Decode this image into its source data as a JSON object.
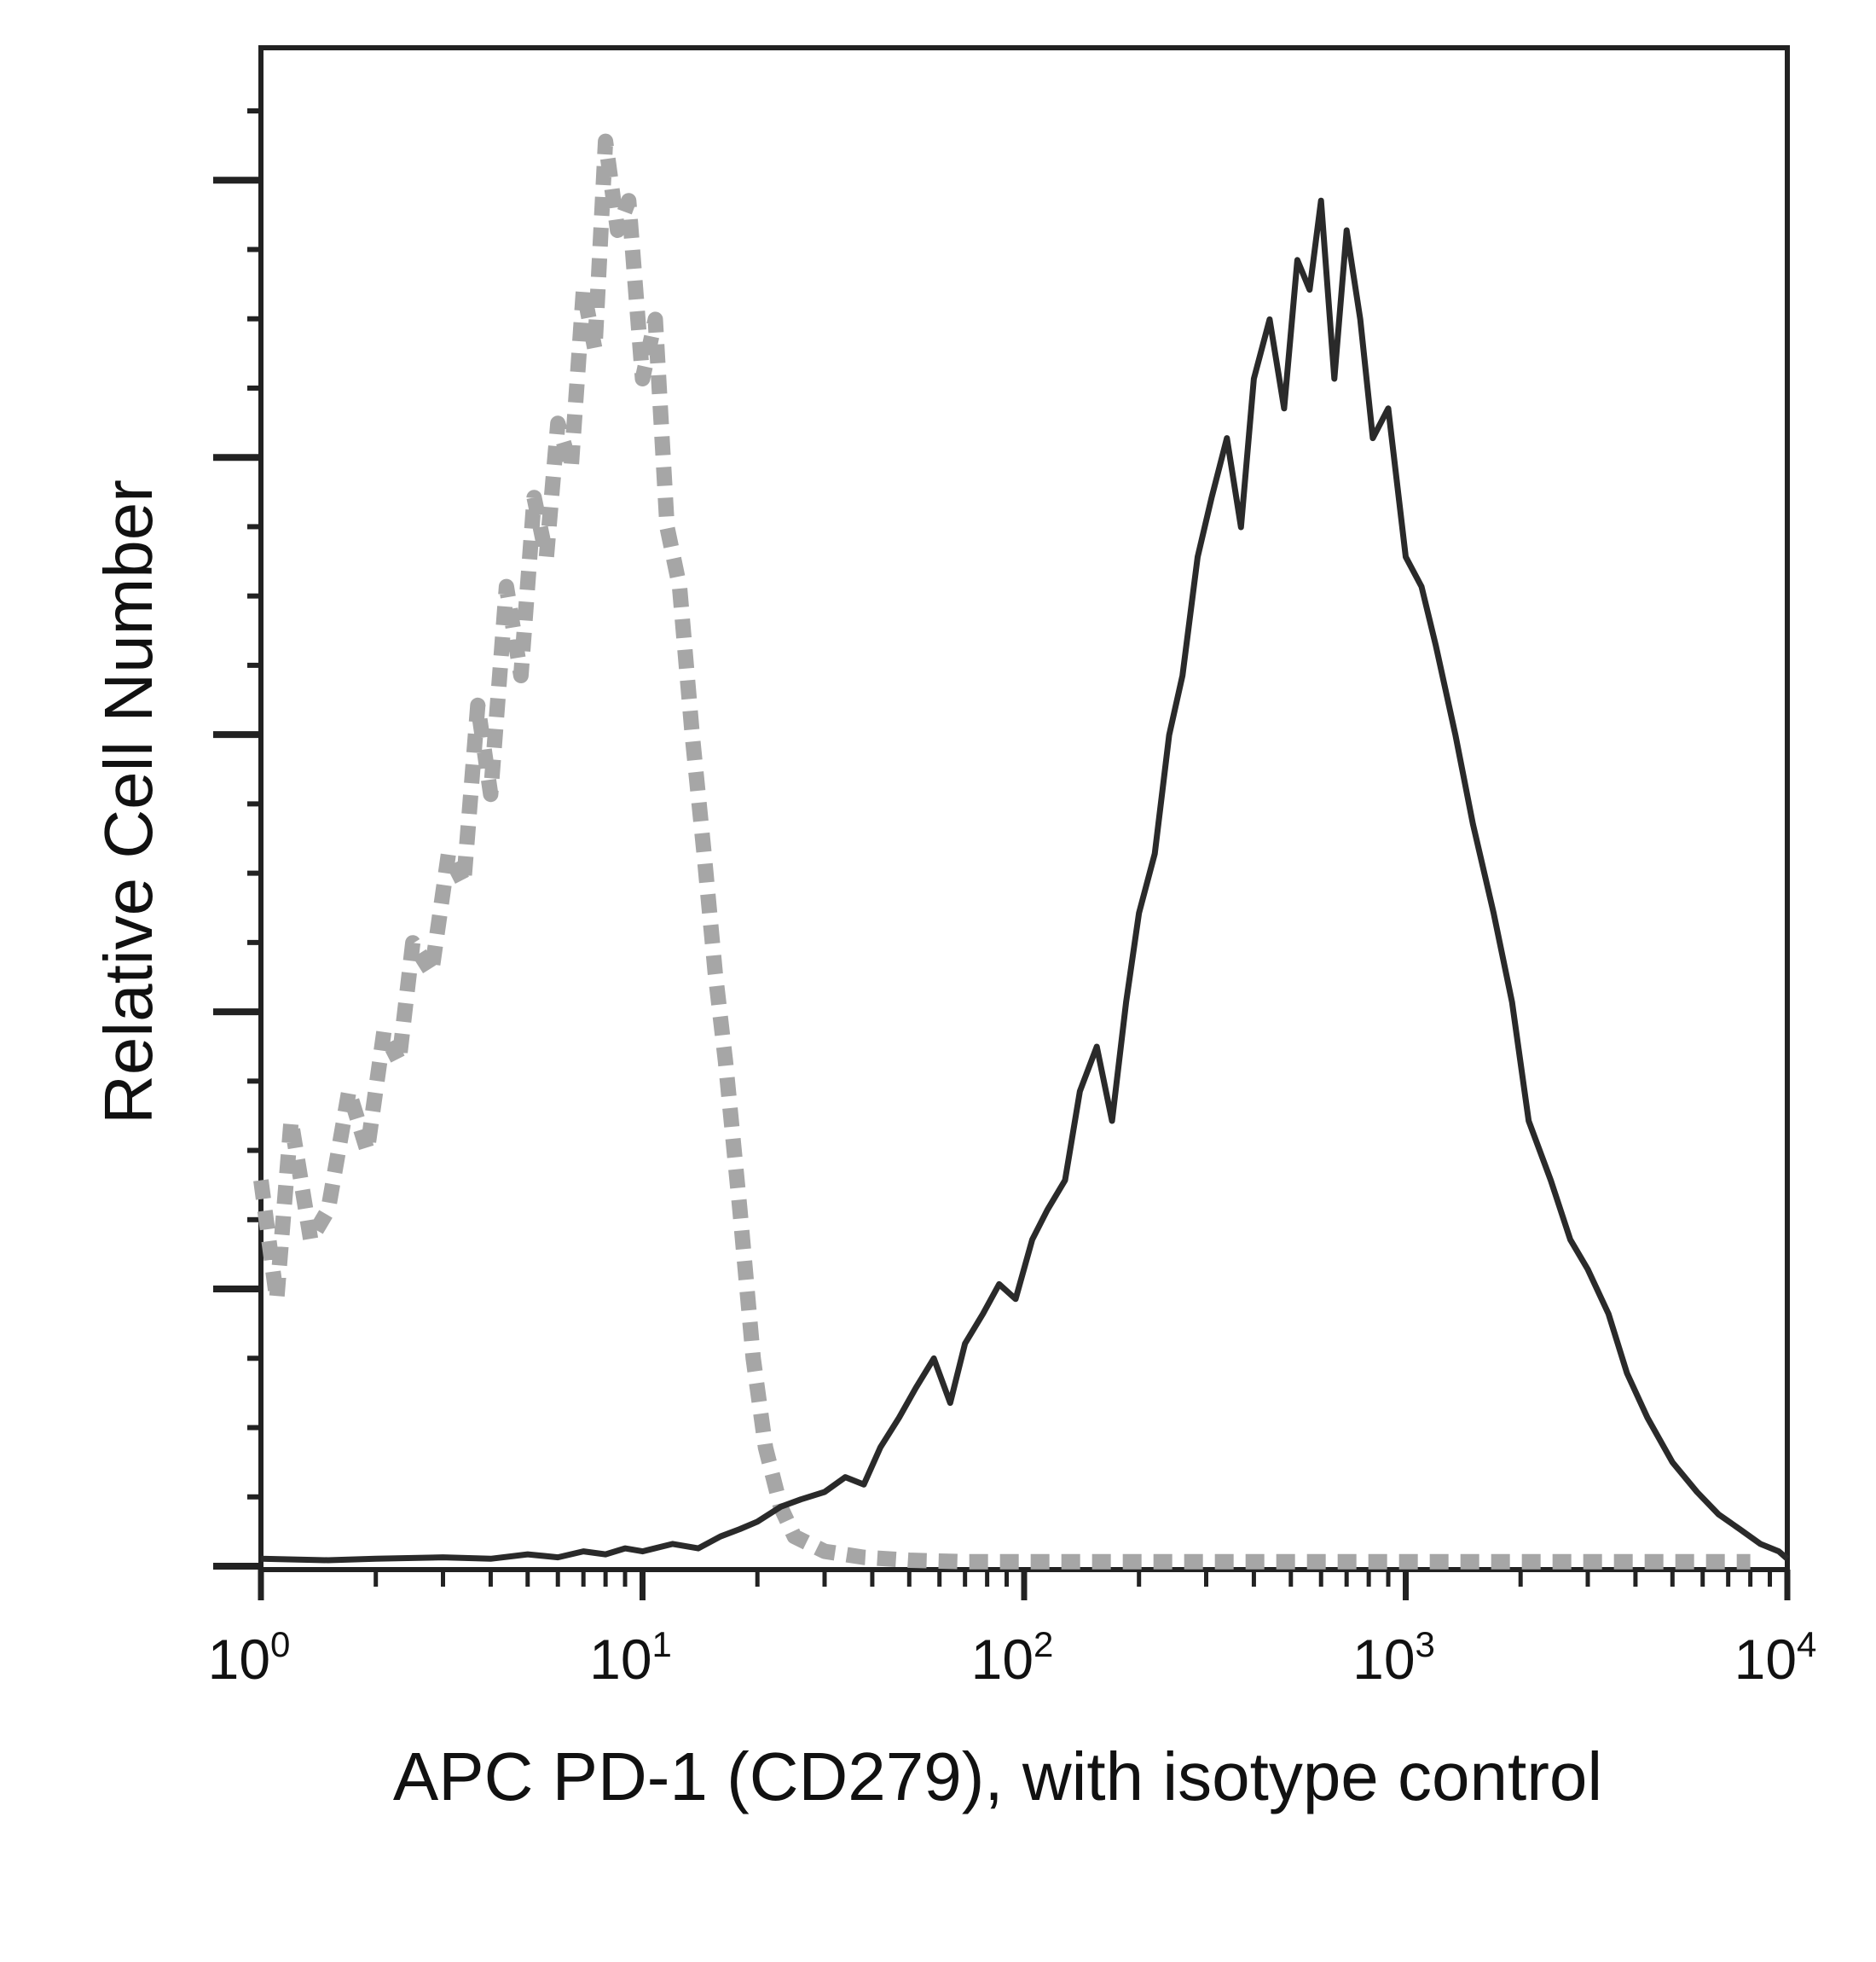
{
  "chart_data": {
    "type": "line",
    "title": "",
    "xlabel": "APC PD-1 (CD279), with isotype control",
    "ylabel": "Relative Cell Number",
    "x_scale": "log",
    "xlim": [
      1,
      10000
    ],
    "ylim": [
      0,
      100
    ],
    "x_ticks": [
      {
        "value": 1,
        "base": "10",
        "exp": "0"
      },
      {
        "value": 10,
        "base": "10",
        "exp": "1"
      },
      {
        "value": 100,
        "base": "10",
        "exp": "2"
      },
      {
        "value": 1000,
        "base": "10",
        "exp": "3"
      },
      {
        "value": 10000,
        "base": "10",
        "exp": "4"
      }
    ],
    "grid": false,
    "legend": "none",
    "series": [
      {
        "color": "#a6a6a6",
        "style": "dashed",
        "x": [
          1.0,
          1.1,
          1.2,
          1.35,
          1.5,
          1.7,
          1.9,
          2.1,
          2.3,
          2.5,
          2.8,
          3.1,
          3.4,
          3.7,
          4.0,
          4.4,
          4.8,
          5.2,
          5.6,
          6.0,
          6.5,
          7.0,
          7.5,
          8.0,
          8.6,
          9.2,
          10.0,
          10.8,
          11.6,
          12.5,
          13.5,
          14.5,
          15.5,
          16.5,
          18.0,
          19.5,
          21.0,
          23.0,
          25.0,
          30.0,
          38.0,
          50.0,
          70.0,
          100.0,
          200.0,
          500.0,
          1000.0,
          3000.0,
          8000.0
        ],
        "y": [
          26,
          18,
          30,
          22,
          24,
          32,
          28,
          36,
          34,
          42,
          40,
          48,
          46,
          58,
          52,
          66,
          60,
          72,
          68,
          77,
          74,
          86,
          82,
          96,
          90,
          92,
          80,
          84,
          70,
          66,
          56,
          48,
          40,
          34,
          24,
          14,
          8,
          4,
          2,
          1,
          0.6,
          0.4,
          0.3,
          0.3,
          0.3,
          0.3,
          0.3,
          0.3,
          0.3
        ]
      },
      {
        "color": "#2a2a2a",
        "style": "solid",
        "x": [
          1.0,
          1.5,
          2.0,
          3.0,
          4.0,
          5.0,
          6.0,
          7.0,
          8.0,
          9.0,
          10.0,
          12.0,
          14.0,
          16.0,
          18.0,
          20.0,
          23.0,
          26.0,
          30.0,
          34.0,
          38.0,
          42.0,
          47.0,
          52.0,
          58.0,
          64.0,
          70.0,
          78.0,
          86.0,
          95.0,
          105.0,
          115.0,
          128.0,
          140.0,
          155.0,
          170.0,
          185.0,
          200.0,
          220.0,
          240.0,
          260.0,
          285.0,
          310.0,
          340.0,
          370.0,
          400.0,
          440.0,
          480.0,
          520.0,
          560.0,
          600.0,
          650.0,
          700.0,
          760.0,
          820.0,
          900.0,
          1000.0,
          1100.0,
          1200.0,
          1350.0,
          1500.0,
          1700.0,
          1900.0,
          2100.0,
          2400.0,
          2700.0,
          3000.0,
          3400.0,
          3800.0,
          4300.0,
          5000.0,
          5800.0,
          6600.0,
          7500.0,
          8500.0,
          9500.0,
          10000.0
        ],
        "y": [
          0.5,
          0.4,
          0.5,
          0.6,
          0.5,
          0.8,
          0.6,
          1.0,
          0.8,
          1.2,
          1.0,
          1.5,
          1.2,
          2.0,
          2.5,
          3.0,
          4.0,
          4.5,
          5.0,
          6.0,
          5.5,
          8.0,
          10.0,
          12.0,
          14.0,
          11.0,
          15.0,
          17.0,
          19.0,
          18.0,
          22.0,
          24.0,
          26.0,
          32.0,
          35.0,
          30.0,
          38.0,
          44.0,
          48.0,
          56.0,
          60.0,
          68.0,
          72.0,
          76.0,
          70.0,
          80.0,
          84.0,
          78.0,
          88.0,
          86.0,
          92.0,
          80.0,
          90.0,
          84.0,
          76.0,
          78.0,
          68.0,
          66.0,
          62.0,
          56.0,
          50.0,
          44.0,
          38.0,
          30.0,
          26.0,
          22.0,
          20.0,
          17.0,
          13.0,
          10.0,
          7.0,
          5.0,
          3.5,
          2.5,
          1.5,
          1.0,
          0.5
        ]
      }
    ]
  }
}
